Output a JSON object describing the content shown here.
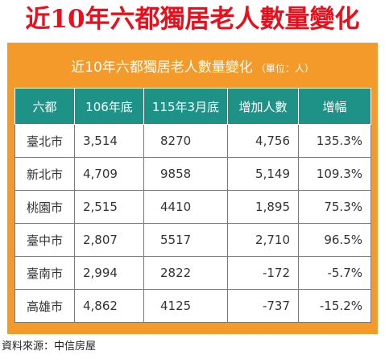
{
  "headline": "近10年六都獨居老人數量變化",
  "banner": {
    "title": "近10年六都獨居老人數量變化",
    "unit": "（單位：人）"
  },
  "table": {
    "headers": [
      "六都",
      "106年底",
      "115年3月底",
      "增加人數",
      "增幅"
    ],
    "rows": [
      [
        "臺北市",
        "3,514",
        "8270",
        "4,756",
        "135.3%"
      ],
      [
        "新北市",
        "4,709",
        "9858",
        "5,149",
        "109.3%"
      ],
      [
        "桃園市",
        "2,515",
        "4410",
        "1,895",
        "75.3%"
      ],
      [
        "臺中市",
        "2,807",
        "5517",
        "2,710",
        "96.5%"
      ],
      [
        "臺南市",
        "2,994",
        "2822",
        "-172",
        "-5.7%"
      ],
      [
        "高雄市",
        "4,862",
        "4125",
        "-737",
        "-15.2%"
      ]
    ]
  },
  "source": "資料來源：中信房屋",
  "colors": {
    "headline": "#e8101c",
    "banner": "#f39a2a",
    "header": "#1e9287"
  }
}
